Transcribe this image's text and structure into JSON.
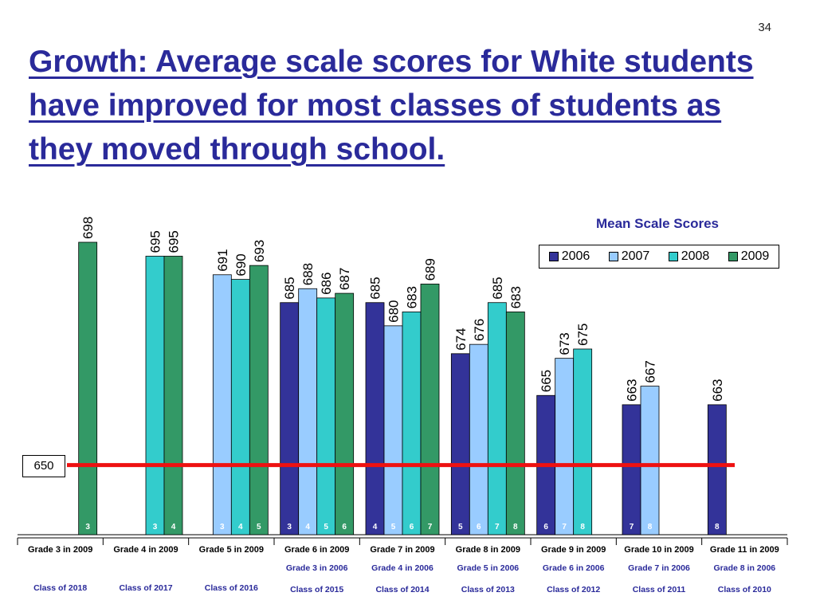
{
  "slide_number": "34",
  "title": "Growth: Average scale scores for White students have improved for most classes of students as they moved through school.",
  "chart_data": {
    "type": "bar",
    "title": "Mean Scale Scores",
    "ylim": [
      635,
      710
    ],
    "legend_position": "top-right",
    "reference_line": {
      "value": 650,
      "label": "650",
      "color": "#ee1111"
    },
    "categories": [
      "Grade 3 in 2009",
      "Grade 4 in 2009",
      "Grade 5 in 2009",
      "Grade 6 in 2009",
      "Grade 7 in 2009",
      "Grade 8 in 2009",
      "Grade 9 in 2009",
      "Grade 10 in 2009",
      "Grade 11 in 2009"
    ],
    "sub_labels": [
      "",
      "",
      "",
      "Grade 3 in 2006",
      "Grade 4 in 2006",
      "Grade 5 in 2006",
      "Grade 6 in 2006",
      "Grade 7 in 2006",
      "Grade 8 in 2006"
    ],
    "class_labels": [
      "Class of 2018",
      "Class of 2017",
      "Class of 2016",
      "Class of 2015",
      "Class of 2014",
      "Class of 2013",
      "Class of 2012",
      "Class of 2011",
      "Class of 2010"
    ],
    "series": [
      {
        "name": "2006",
        "color": "#333399",
        "values": [
          null,
          null,
          null,
          685,
          685,
          674,
          665,
          663,
          663
        ],
        "grades": [
          "",
          "",
          "",
          "3",
          "4",
          "5",
          "6",
          "7",
          "8"
        ]
      },
      {
        "name": "2007",
        "color": "#99ccff",
        "values": [
          null,
          null,
          691,
          688,
          680,
          676,
          673,
          667,
          null
        ],
        "grades": [
          "",
          "",
          "3",
          "4",
          "5",
          "6",
          "7",
          "8",
          ""
        ]
      },
      {
        "name": "2008",
        "color": "#33cccc",
        "values": [
          null,
          695,
          690,
          686,
          683,
          685,
          675,
          null,
          null
        ],
        "grades": [
          "",
          "3",
          "4",
          "5",
          "6",
          "7",
          "8",
          "",
          ""
        ]
      },
      {
        "name": "2009",
        "color": "#339966",
        "values": [
          698,
          695,
          693,
          687,
          689,
          683,
          null,
          null,
          null
        ],
        "grades": [
          "3",
          "4",
          "5",
          "6",
          "7",
          "8",
          "",
          "",
          ""
        ]
      }
    ]
  }
}
